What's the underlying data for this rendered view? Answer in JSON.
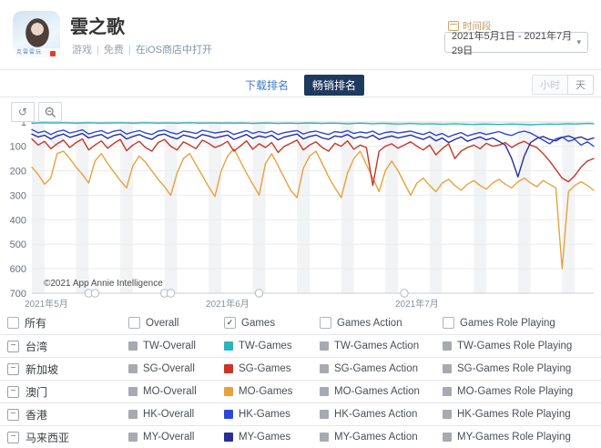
{
  "header": {
    "app_title": "雲之歌",
    "subtitle": {
      "category": "游戏",
      "price": "免费",
      "open_link": "在iOS商店中打开",
      "sep": "|"
    },
    "date_filter": {
      "label": "时间段",
      "value": "2021年5月1日 - 2021年7月29日",
      "caret": "▾",
      "icon": "calendar-icon"
    }
  },
  "tabs": {
    "download": "下载排名",
    "grossing": "畅销排名"
  },
  "interval_toggle": {
    "hour": "小时",
    "day": "天"
  },
  "chart_toolbar": {
    "reset_glyph": "↺",
    "reset_icon": "reset-zoom-icon",
    "zoom_out_icon": "zoom-out-icon"
  },
  "chart_data": {
    "type": "line",
    "title": "",
    "x_start": "2021-05-01",
    "x_end": "2021-07-29",
    "days": 90,
    "x_tick_labels": [
      {
        "label": "2021年5月",
        "day": 0
      },
      {
        "label": "2021年6月",
        "day": 31
      },
      {
        "label": "2021年7月",
        "day": 61
      }
    ],
    "y_axis": {
      "label": "rank",
      "inverted": true,
      "min": 1,
      "max": 700,
      "ticks": [
        1,
        100,
        200,
        300,
        400,
        500,
        600,
        700
      ]
    },
    "grid": true,
    "watermark": "©2021 App Annie Intelligence",
    "event_marker_days": [
      9,
      10,
      21,
      22,
      36,
      59
    ],
    "weekend_start_days": [
      0,
      7,
      14,
      21,
      28,
      35,
      42,
      49,
      56,
      63,
      70,
      77,
      84
    ],
    "annotation_marker": {
      "day": 4,
      "rank": 75
    },
    "draw_order": [
      "MO-Games",
      "SG-Games",
      "MY-Games",
      "HK-Games",
      "TW-Games"
    ],
    "series": [
      {
        "name": "TW-Games",
        "color": "#2fb3bd",
        "values": [
          6,
          5,
          4,
          5,
          5,
          4,
          5,
          6,
          5,
          4,
          5,
          6,
          5,
          5,
          4,
          5,
          6,
          5,
          4,
          5,
          6,
          5,
          5,
          6,
          5,
          4,
          5,
          6,
          5,
          5,
          6,
          5,
          6,
          5,
          6,
          7,
          6,
          5,
          6,
          7,
          6,
          6,
          7,
          6,
          5,
          6,
          7,
          6,
          6,
          7,
          8,
          7,
          6,
          7,
          8,
          7,
          7,
          8,
          9,
          8,
          7,
          8,
          9,
          8,
          9,
          10,
          9,
          8,
          9,
          10,
          11,
          10,
          9,
          10,
          11,
          10,
          9,
          10,
          11,
          12,
          11,
          10,
          9,
          10,
          9,
          8,
          9,
          8,
          7,
          8
        ]
      },
      {
        "name": "SG-Games",
        "color": "#cb3527",
        "values": [
          70,
          95,
          80,
          110,
          90,
          75,
          105,
          85,
          70,
          115,
          95,
          78,
          108,
          88,
          72,
          118,
          95,
          80,
          105,
          120,
          85,
          72,
          100,
          115,
          82,
          95,
          110,
          75,
          88,
          105,
          95,
          80,
          120,
          100,
          78,
          112,
          90,
          105,
          85,
          125,
          100,
          88,
          75,
          115,
          95,
          82,
          105,
          120,
          88,
          100,
          78,
          112,
          95,
          105,
          260,
          120,
          100,
          90,
          108,
          95,
          82,
          100,
          115,
          95,
          135,
          110,
          90,
          150,
          120,
          105,
          95,
          110,
          88,
          100,
          95,
          85,
          105,
          90,
          80,
          95,
          105,
          130,
          160,
          195,
          230,
          245,
          220,
          185,
          160,
          150
        ]
      },
      {
        "name": "MO-Games",
        "color": "#e9a13c",
        "values": [
          185,
          215,
          255,
          230,
          130,
          120,
          150,
          185,
          215,
          250,
          160,
          130,
          170,
          205,
          240,
          270,
          180,
          140,
          165,
          200,
          235,
          265,
          300,
          210,
          150,
          130,
          175,
          220,
          265,
          305,
          200,
          140,
          110,
          160,
          210,
          255,
          300,
          170,
          130,
          180,
          230,
          280,
          310,
          190,
          140,
          120,
          170,
          225,
          270,
          310,
          210,
          150,
          120,
          175,
          230,
          285,
          200,
          160,
          200,
          250,
          300,
          250,
          230,
          260,
          285,
          250,
          235,
          260,
          280,
          255,
          240,
          260,
          275,
          250,
          235,
          255,
          270,
          245,
          230,
          250,
          265,
          240,
          255,
          270,
          600,
          285,
          260,
          245,
          260,
          280
        ]
      },
      {
        "name": "HK-Games",
        "color": "#2b49d8",
        "values": [
          32,
          45,
          38,
          52,
          40,
          34,
          46,
          40,
          33,
          50,
          42,
          36,
          48,
          38,
          34,
          50,
          42,
          36,
          46,
          52,
          38,
          34,
          44,
          50,
          38,
          42,
          48,
          35,
          40,
          46,
          42,
          38,
          52,
          44,
          36,
          48,
          40,
          46,
          38,
          52,
          44,
          40,
          36,
          50,
          42,
          38,
          46,
          52,
          40,
          44,
          36,
          48,
          42,
          46,
          38,
          52,
          44,
          40,
          46,
          42,
          38,
          46,
          52,
          42,
          56,
          48,
          62,
          52,
          44,
          58,
          50,
          44,
          52,
          46,
          40,
          50,
          56,
          44,
          38,
          46,
          60,
          75,
          90,
          70,
          62,
          80,
          72,
          95,
          82,
          100
        ]
      },
      {
        "name": "MY-Games",
        "color": "#2a2c9b",
        "values": [
          50,
          62,
          55,
          70,
          58,
          50,
          64,
          56,
          48,
          66,
          58,
          52,
          68,
          56,
          50,
          70,
          60,
          52,
          64,
          72,
          55,
          50,
          62,
          70,
          54,
          60,
          68,
          52,
          58,
          66,
          60,
          54,
          72,
          62,
          52,
          68,
          58,
          64,
          55,
          74,
          62,
          56,
          50,
          70,
          60,
          54,
          66,
          72,
          58,
          62,
          52,
          68,
          60,
          66,
          55,
          72,
          64,
          58,
          66,
          60,
          54,
          64,
          72,
          60,
          78,
          66,
          85,
          72,
          62,
          80,
          70,
          62,
          74,
          66,
          80,
          95,
          150,
          225,
          140,
          85,
          68,
          60,
          72,
          78,
          64,
          58,
          68,
          62,
          74,
          66
        ]
      }
    ]
  },
  "table": {
    "select_all": {
      "label": "所有",
      "checked": false
    },
    "columns": [
      {
        "label": "Overall",
        "checked": false
      },
      {
        "label": "Games",
        "checked": true
      },
      {
        "label": "Games Action",
        "checked": false
      },
      {
        "label": "Games Role Playing",
        "checked": false
      }
    ],
    "swatch_gray": "#a7aab1",
    "rows": [
      {
        "region": "台湾",
        "code": "TW",
        "cells": [
          {
            "label": "TW-Overall",
            "color": "#a7aab1"
          },
          {
            "label": "TW-Games",
            "color": "#2fb3bd"
          },
          {
            "label": "TW-Games Action",
            "color": "#a7aab1"
          },
          {
            "label": "TW-Games Role Playing",
            "color": "#a7aab1"
          }
        ]
      },
      {
        "region": "新加坡",
        "code": "SG",
        "cells": [
          {
            "label": "SG-Overall",
            "color": "#a7aab1"
          },
          {
            "label": "SG-Games",
            "color": "#cb3527"
          },
          {
            "label": "SG-Games Action",
            "color": "#a7aab1"
          },
          {
            "label": "SG-Games Role Playing",
            "color": "#a7aab1"
          }
        ]
      },
      {
        "region": "澳门",
        "code": "MO",
        "cells": [
          {
            "label": "MO-Overall",
            "color": "#a7aab1"
          },
          {
            "label": "MO-Games",
            "color": "#e9a13c"
          },
          {
            "label": "MO-Games Action",
            "color": "#a7aab1"
          },
          {
            "label": "MO-Games Role Playing",
            "color": "#a7aab1"
          }
        ]
      },
      {
        "region": "香港",
        "code": "HK",
        "cells": [
          {
            "label": "HK-Overall",
            "color": "#a7aab1"
          },
          {
            "label": "HK-Games",
            "color": "#2b49d8"
          },
          {
            "label": "HK-Games Action",
            "color": "#a7aab1"
          },
          {
            "label": "HK-Games Role Playing",
            "color": "#a7aab1"
          }
        ]
      },
      {
        "region": "马来西亚",
        "code": "MY",
        "cells": [
          {
            "label": "MY-Overall",
            "color": "#a7aab1"
          },
          {
            "label": "MY-Games",
            "color": "#2a2c9b"
          },
          {
            "label": "MY-Games Action",
            "color": "#a7aab1"
          },
          {
            "label": "MY-Games Role Playing",
            "color": "#a7aab1"
          }
        ]
      }
    ]
  }
}
